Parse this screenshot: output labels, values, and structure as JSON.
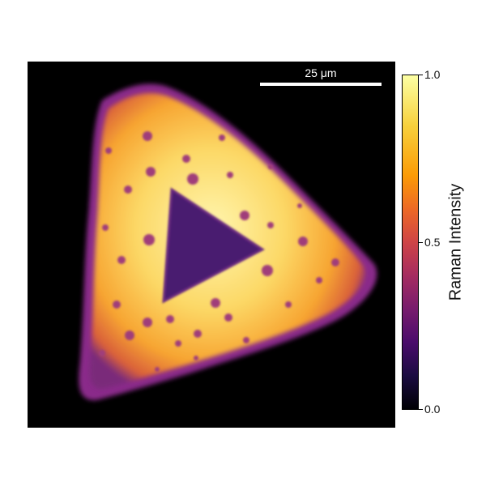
{
  "scale_bar": {
    "label": "25 μm"
  },
  "colorbar": {
    "title": "Raman Intensity",
    "ticks": [
      {
        "label": "1.0",
        "value": 1.0
      },
      {
        "label": "0.5",
        "value": 0.5
      },
      {
        "label": "0.0",
        "value": 0.0
      }
    ]
  },
  "colors": {
    "background": "#000000",
    "flake_edge": "#8a2a8a",
    "flake_mid": "#f5a623",
    "flake_center": "#fff3a8",
    "inner_triangle": "#4a1a70",
    "spots": "#a03c7a"
  }
}
